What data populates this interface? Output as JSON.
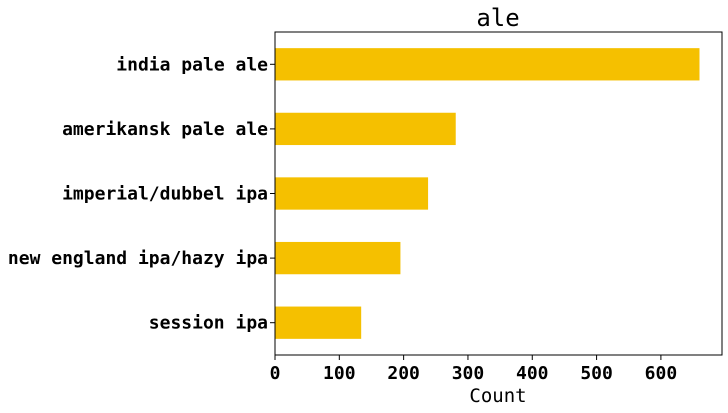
{
  "chart_data": {
    "type": "bar",
    "orientation": "horizontal",
    "title": "ale",
    "xlabel": "Count",
    "ylabel": "",
    "categories": [
      "india pale ale",
      "amerikansk pale ale",
      "imperial/dubbel ipa",
      "new england ipa/hazy ipa",
      "session ipa"
    ],
    "values": [
      660,
      281,
      238,
      195,
      134
    ],
    "xlim": [
      0,
      695
    ],
    "xticks": [
      0,
      100,
      200,
      300,
      400,
      500,
      600
    ],
    "bar_color": "#f5c000",
    "grid": false,
    "legend": "none"
  }
}
